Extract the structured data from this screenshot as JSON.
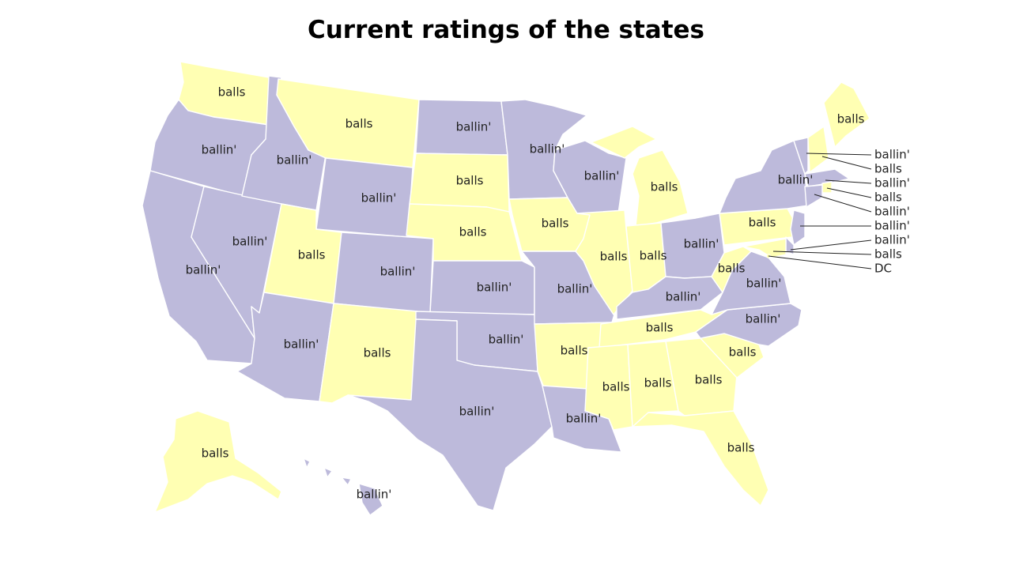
{
  "title": "Current ratings of the states",
  "colors": {
    "ballin'": "#bdbadb",
    "balls": "#ffffb3"
  },
  "states": {
    "WA": "balls",
    "OR": "ballin'",
    "CA": "ballin'",
    "NV": "ballin'",
    "ID": "ballin'",
    "MT": "balls",
    "WY": "ballin'",
    "UT": "balls",
    "AZ": "ballin'",
    "CO": "ballin'",
    "NM": "balls",
    "ND": "ballin'",
    "SD": "balls",
    "NE": "balls",
    "KS": "ballin'",
    "OK": "ballin'",
    "TX": "ballin'",
    "MN": "ballin'",
    "IA": "balls",
    "MO": "ballin'",
    "AR": "balls",
    "LA": "ballin'",
    "WI": "ballin'",
    "IL": "balls",
    "MI": "balls",
    "IN": "balls",
    "OH": "ballin'",
    "KY": "ballin'",
    "TN": "balls",
    "MS": "balls",
    "AL": "balls",
    "GA": "balls",
    "FL": "balls",
    "SC": "balls",
    "NC": "ballin'",
    "VA": "ballin'",
    "WV": "balls",
    "PA": "balls",
    "NY": "ballin'",
    "ME": "balls",
    "AK": "balls",
    "HI": "ballin'"
  },
  "callouts": [
    {
      "state": "VT",
      "label": "ballin'"
    },
    {
      "state": "NH",
      "label": "balls"
    },
    {
      "state": "MA",
      "label": "ballin'"
    },
    {
      "state": "RI",
      "label": "balls"
    },
    {
      "state": "CT",
      "label": "ballin'"
    },
    {
      "state": "NJ",
      "label": "ballin'"
    },
    {
      "state": "DE",
      "label": "ballin'"
    },
    {
      "state": "MD",
      "label": "balls"
    },
    {
      "state": "DC",
      "label": "DC"
    }
  ]
}
